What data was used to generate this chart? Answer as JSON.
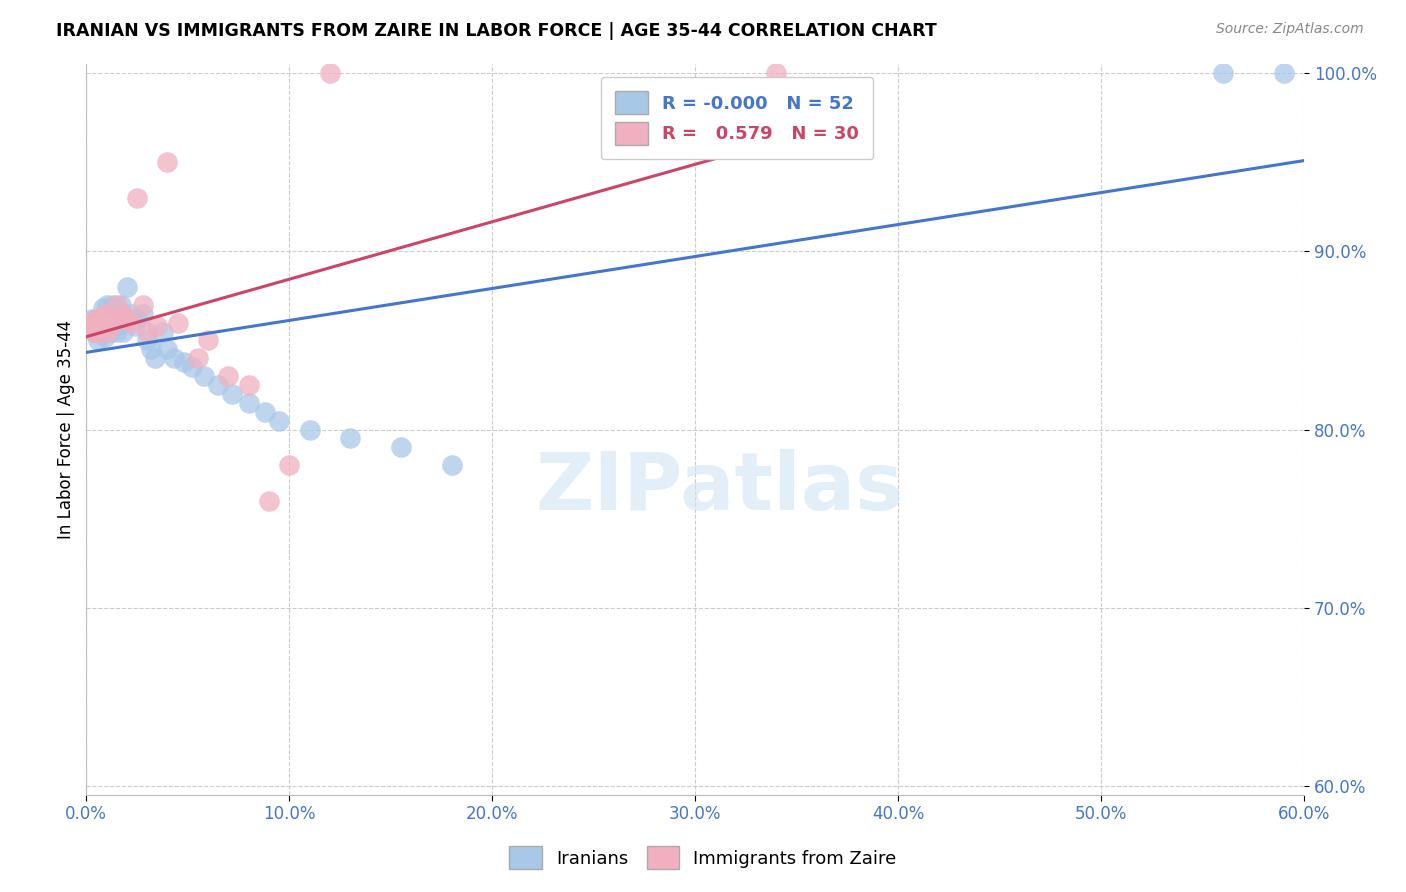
{
  "title": "IRANIAN VS IMMIGRANTS FROM ZAIRE IN LABOR FORCE | AGE 35-44 CORRELATION CHART",
  "source": "Source: ZipAtlas.com",
  "ylabel": "In Labor Force | Age 35-44",
  "watermark": "ZIPatlas",
  "xlim": [
    0.0,
    0.6
  ],
  "ylim": [
    0.595,
    1.005
  ],
  "blue_color": "#a8c8e8",
  "pink_color": "#f0b0c0",
  "blue_line_color": "#4477cc",
  "pink_line_color": "#cc4466",
  "tick_color": "#4477cc",
  "legend_r_iranian": "-0.000",
  "legend_n_iranian": "52",
  "legend_r_zaire": "0.579",
  "legend_n_zaire": "30",
  "iranian_x": [
    0.001,
    0.002,
    0.003,
    0.003,
    0.004,
    0.004,
    0.005,
    0.005,
    0.006,
    0.007,
    0.007,
    0.008,
    0.008,
    0.009,
    0.009,
    0.01,
    0.01,
    0.011,
    0.012,
    0.012,
    0.013,
    0.014,
    0.015,
    0.015,
    0.016,
    0.017,
    0.018,
    0.02,
    0.022,
    0.024,
    0.025,
    0.028,
    0.03,
    0.032,
    0.034,
    0.038,
    0.04,
    0.043,
    0.048,
    0.052,
    0.058,
    0.065,
    0.072,
    0.08,
    0.088,
    0.095,
    0.11,
    0.13,
    0.155,
    0.18,
    0.56,
    0.59
  ],
  "iranian_y": [
    0.857,
    0.858,
    0.862,
    0.86,
    0.857,
    0.855,
    0.86,
    0.862,
    0.85,
    0.855,
    0.858,
    0.862,
    0.868,
    0.855,
    0.852,
    0.86,
    0.87,
    0.865,
    0.857,
    0.855,
    0.87,
    0.868,
    0.862,
    0.855,
    0.858,
    0.87,
    0.855,
    0.88,
    0.865,
    0.858,
    0.862,
    0.865,
    0.85,
    0.845,
    0.84,
    0.855,
    0.845,
    0.84,
    0.838,
    0.835,
    0.83,
    0.825,
    0.82,
    0.815,
    0.81,
    0.805,
    0.8,
    0.795,
    0.79,
    0.78,
    1.0,
    1.0
  ],
  "zaire_x": [
    0.001,
    0.002,
    0.003,
    0.004,
    0.005,
    0.006,
    0.007,
    0.008,
    0.009,
    0.01,
    0.011,
    0.012,
    0.015,
    0.018,
    0.02,
    0.022,
    0.025,
    0.028,
    0.03,
    0.035,
    0.04,
    0.045,
    0.055,
    0.06,
    0.07,
    0.08,
    0.09,
    0.1,
    0.12,
    0.34
  ],
  "zaire_y": [
    0.858,
    0.86,
    0.857,
    0.855,
    0.862,
    0.855,
    0.858,
    0.862,
    0.865,
    0.855,
    0.862,
    0.858,
    0.87,
    0.865,
    0.862,
    0.86,
    0.93,
    0.87,
    0.855,
    0.858,
    0.95,
    0.86,
    0.84,
    0.85,
    0.83,
    0.825,
    0.76,
    0.78,
    1.0,
    1.0
  ]
}
